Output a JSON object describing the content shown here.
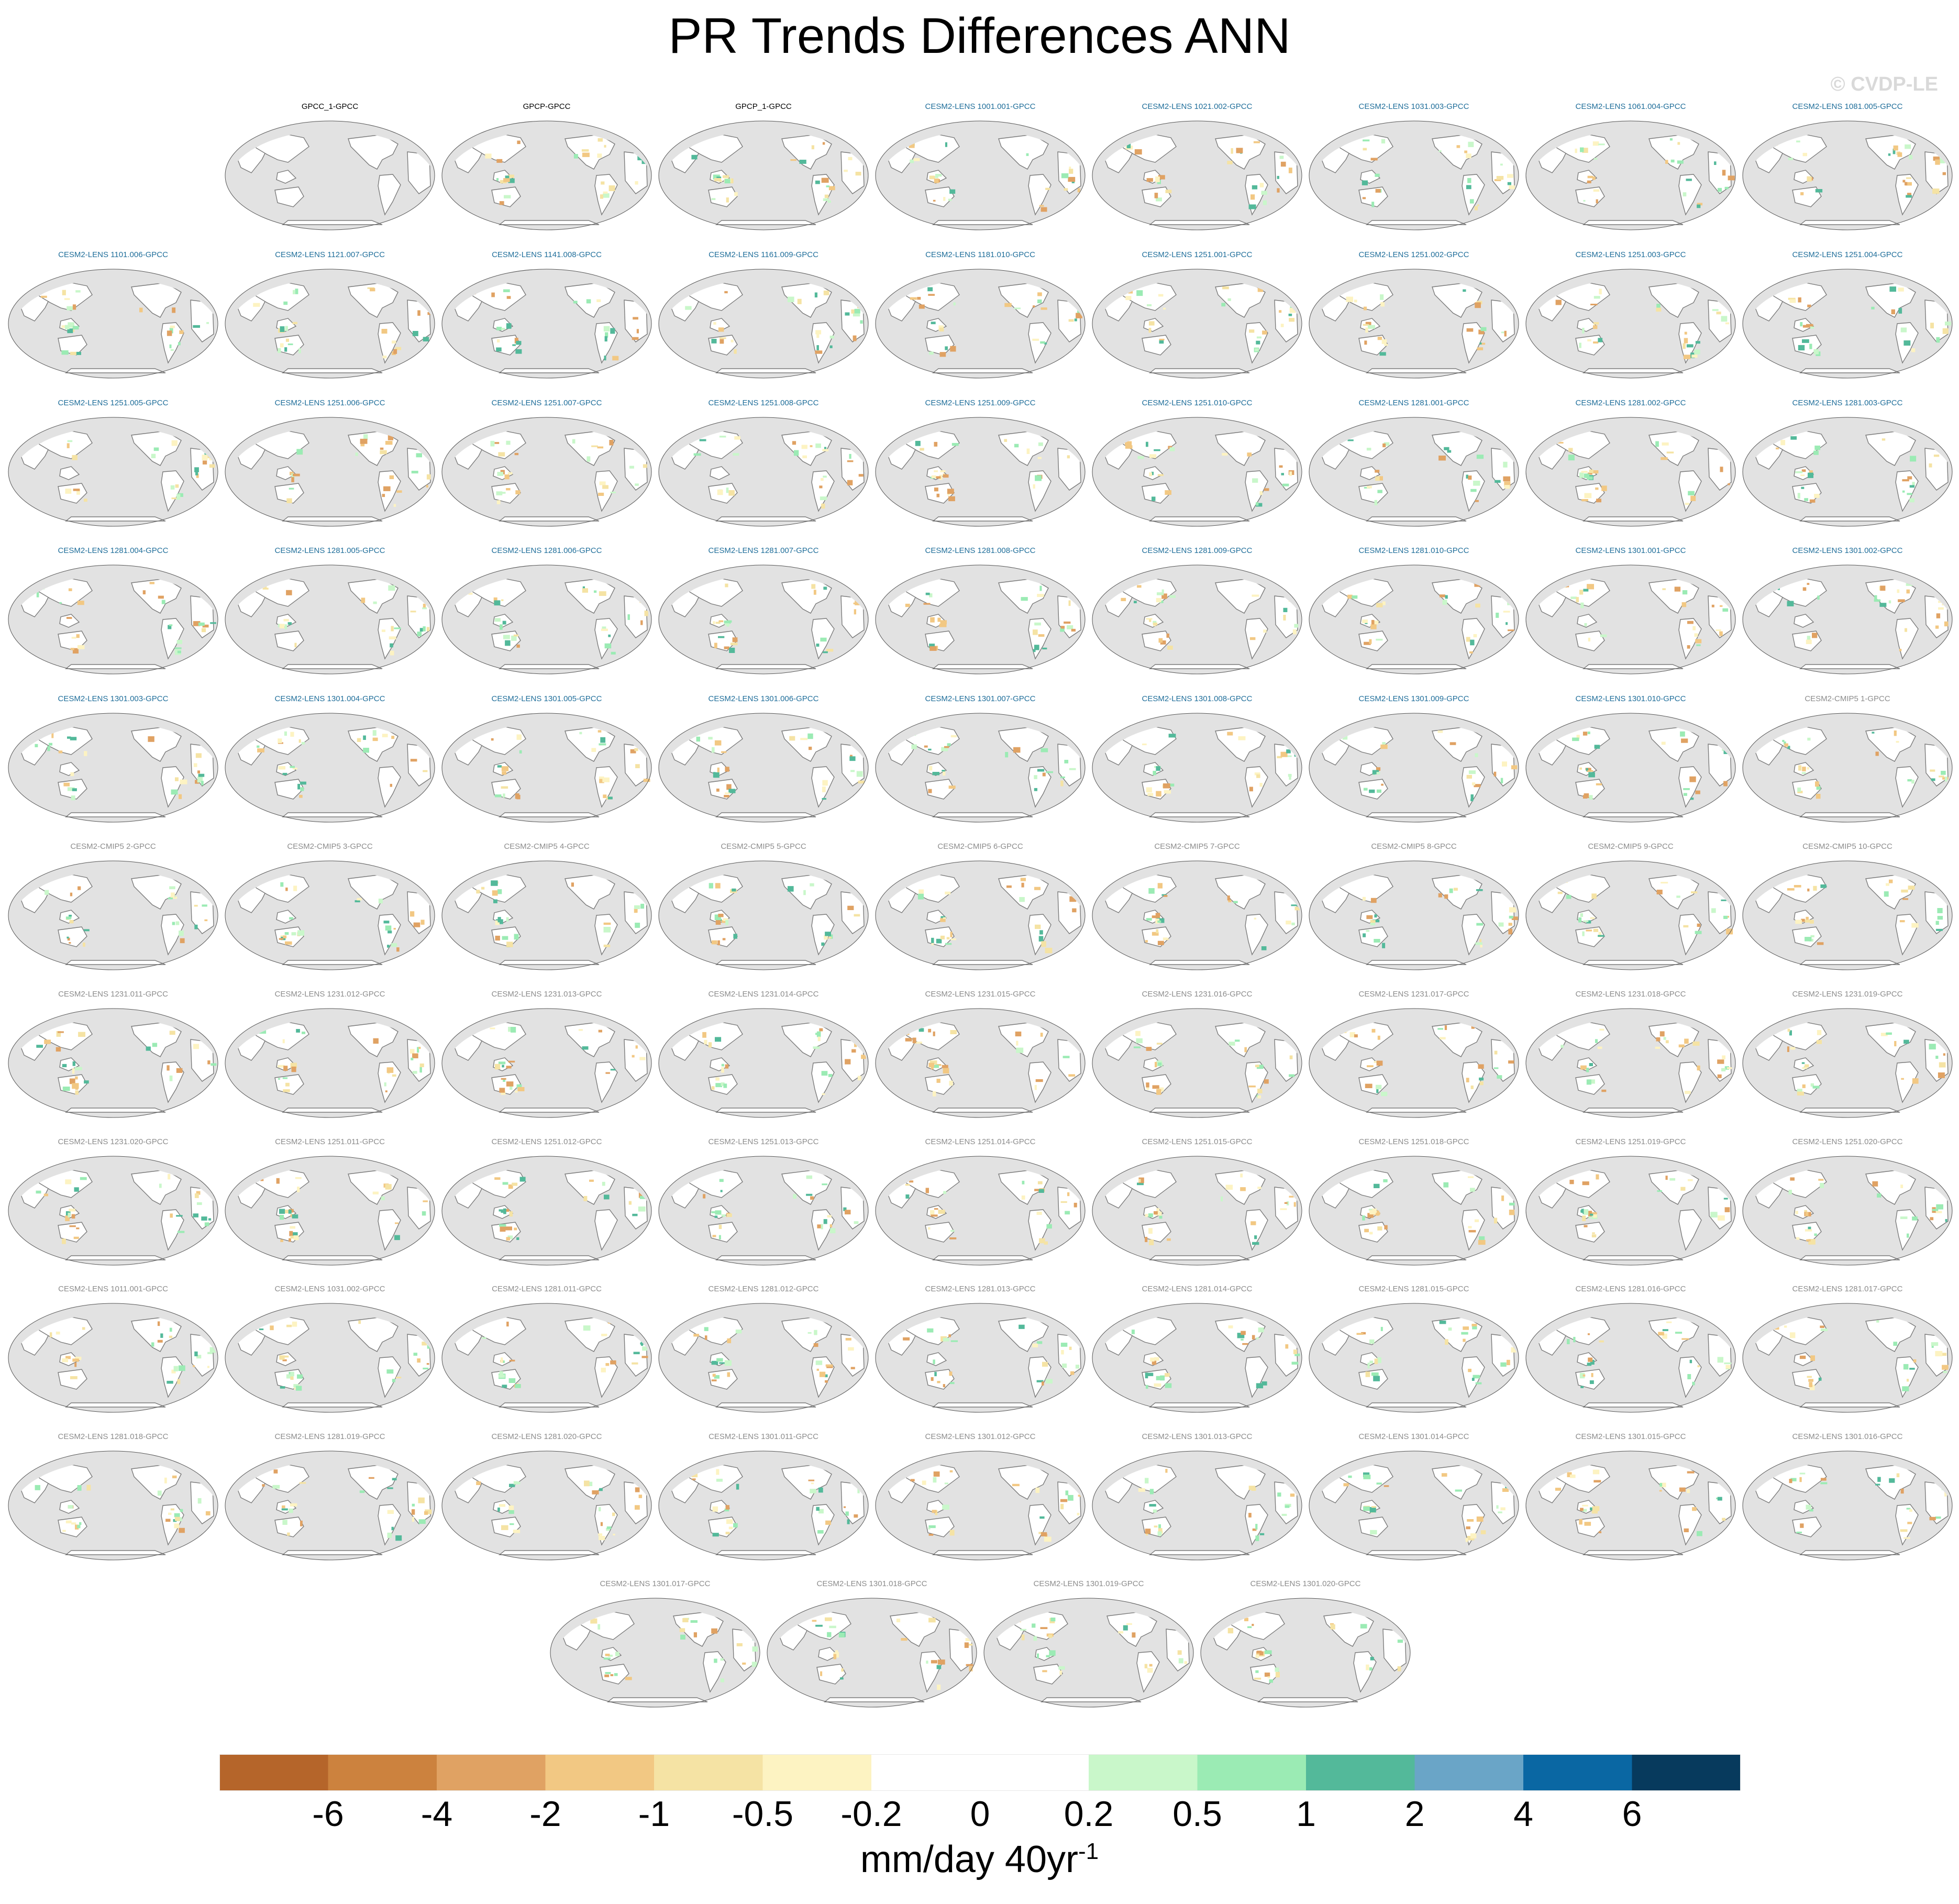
{
  "title": "PR Trends Differences ANN",
  "watermark": "© CVDP-LE",
  "colors": {
    "ocean_fill": "#e2e2e2",
    "land_fill": "#ffffff",
    "coast": "#7a7a7a",
    "label_obs": "#000000",
    "label_blue": "#1f6e9a",
    "label_gray": "#8c8c8c"
  },
  "chart_data": {
    "type": "heatmap",
    "projection": "Robinson, Pacific-centered global maps",
    "variable": "PR",
    "season": "ANN",
    "panels": [
      {
        "label": "GPCC_1-GPCC",
        "group": "obs"
      },
      {
        "label": "GPCP-GPCC",
        "group": "obs"
      },
      {
        "label": "GPCP_1-GPCC",
        "group": "obs"
      },
      {
        "label": "CESM2-LENS 1001.001-GPCC",
        "group": "blue"
      },
      {
        "label": "CESM2-LENS 1021.002-GPCC",
        "group": "blue"
      },
      {
        "label": "CESM2-LENS 1031.003-GPCC",
        "group": "blue"
      },
      {
        "label": "CESM2-LENS 1061.004-GPCC",
        "group": "blue"
      },
      {
        "label": "CESM2-LENS 1081.005-GPCC",
        "group": "blue"
      },
      {
        "label": "CESM2-LENS 1101.006-GPCC",
        "group": "blue"
      },
      {
        "label": "CESM2-LENS 1121.007-GPCC",
        "group": "blue"
      },
      {
        "label": "CESM2-LENS 1141.008-GPCC",
        "group": "blue"
      },
      {
        "label": "CESM2-LENS 1161.009-GPCC",
        "group": "blue"
      },
      {
        "label": "CESM2-LENS 1181.010-GPCC",
        "group": "blue"
      },
      {
        "label": "CESM2-LENS 1251.001-GPCC",
        "group": "blue"
      },
      {
        "label": "CESM2-LENS 1251.002-GPCC",
        "group": "blue"
      },
      {
        "label": "CESM2-LENS 1251.003-GPCC",
        "group": "blue"
      },
      {
        "label": "CESM2-LENS 1251.004-GPCC",
        "group": "blue"
      },
      {
        "label": "CESM2-LENS 1251.005-GPCC",
        "group": "blue"
      },
      {
        "label": "CESM2-LENS 1251.006-GPCC",
        "group": "blue"
      },
      {
        "label": "CESM2-LENS 1251.007-GPCC",
        "group": "blue"
      },
      {
        "label": "CESM2-LENS 1251.008-GPCC",
        "group": "blue"
      },
      {
        "label": "CESM2-LENS 1251.009-GPCC",
        "group": "blue"
      },
      {
        "label": "CESM2-LENS 1251.010-GPCC",
        "group": "blue"
      },
      {
        "label": "CESM2-LENS 1281.001-GPCC",
        "group": "blue"
      },
      {
        "label": "CESM2-LENS 1281.002-GPCC",
        "group": "blue"
      },
      {
        "label": "CESM2-LENS 1281.003-GPCC",
        "group": "blue"
      },
      {
        "label": "CESM2-LENS 1281.004-GPCC",
        "group": "blue"
      },
      {
        "label": "CESM2-LENS 1281.005-GPCC",
        "group": "blue"
      },
      {
        "label": "CESM2-LENS 1281.006-GPCC",
        "group": "blue"
      },
      {
        "label": "CESM2-LENS 1281.007-GPCC",
        "group": "blue"
      },
      {
        "label": "CESM2-LENS 1281.008-GPCC",
        "group": "blue"
      },
      {
        "label": "CESM2-LENS 1281.009-GPCC",
        "group": "blue"
      },
      {
        "label": "CESM2-LENS 1281.010-GPCC",
        "group": "blue"
      },
      {
        "label": "CESM2-LENS 1301.001-GPCC",
        "group": "blue"
      },
      {
        "label": "CESM2-LENS 1301.002-GPCC",
        "group": "blue"
      },
      {
        "label": "CESM2-LENS 1301.003-GPCC",
        "group": "blue"
      },
      {
        "label": "CESM2-LENS 1301.004-GPCC",
        "group": "blue"
      },
      {
        "label": "CESM2-LENS 1301.005-GPCC",
        "group": "blue"
      },
      {
        "label": "CESM2-LENS 1301.006-GPCC",
        "group": "blue"
      },
      {
        "label": "CESM2-LENS 1301.007-GPCC",
        "group": "blue"
      },
      {
        "label": "CESM2-LENS 1301.008-GPCC",
        "group": "blue"
      },
      {
        "label": "CESM2-LENS 1301.009-GPCC",
        "group": "blue"
      },
      {
        "label": "CESM2-LENS 1301.010-GPCC",
        "group": "blue"
      },
      {
        "label": "CESM2-CMIP5 1-GPCC",
        "group": "gray"
      },
      {
        "label": "CESM2-CMIP5 2-GPCC",
        "group": "gray"
      },
      {
        "label": "CESM2-CMIP5 3-GPCC",
        "group": "gray"
      },
      {
        "label": "CESM2-CMIP5 4-GPCC",
        "group": "gray"
      },
      {
        "label": "CESM2-CMIP5 5-GPCC",
        "group": "gray"
      },
      {
        "label": "CESM2-CMIP5 6-GPCC",
        "group": "gray"
      },
      {
        "label": "CESM2-CMIP5 7-GPCC",
        "group": "gray"
      },
      {
        "label": "CESM2-CMIP5 8-GPCC",
        "group": "gray"
      },
      {
        "label": "CESM2-CMIP5 9-GPCC",
        "group": "gray"
      },
      {
        "label": "CESM2-CMIP5 10-GPCC",
        "group": "gray"
      },
      {
        "label": "CESM2-LENS 1231.011-GPCC",
        "group": "gray"
      },
      {
        "label": "CESM2-LENS 1231.012-GPCC",
        "group": "gray"
      },
      {
        "label": "CESM2-LENS 1231.013-GPCC",
        "group": "gray"
      },
      {
        "label": "CESM2-LENS 1231.014-GPCC",
        "group": "gray"
      },
      {
        "label": "CESM2-LENS 1231.015-GPCC",
        "group": "gray"
      },
      {
        "label": "CESM2-LENS 1231.016-GPCC",
        "group": "gray"
      },
      {
        "label": "CESM2-LENS 1231.017-GPCC",
        "group": "gray"
      },
      {
        "label": "CESM2-LENS 1231.018-GPCC",
        "group": "gray"
      },
      {
        "label": "CESM2-LENS 1231.019-GPCC",
        "group": "gray"
      },
      {
        "label": "CESM2-LENS 1231.020-GPCC",
        "group": "gray"
      },
      {
        "label": "CESM2-LENS 1251.011-GPCC",
        "group": "gray"
      },
      {
        "label": "CESM2-LENS 1251.012-GPCC",
        "group": "gray"
      },
      {
        "label": "CESM2-LENS 1251.013-GPCC",
        "group": "gray"
      },
      {
        "label": "CESM2-LENS 1251.014-GPCC",
        "group": "gray"
      },
      {
        "label": "CESM2-LENS 1251.015-GPCC",
        "group": "gray"
      },
      {
        "label": "CESM2-LENS 1251.018-GPCC",
        "group": "gray"
      },
      {
        "label": "CESM2-LENS 1251.019-GPCC",
        "group": "gray"
      },
      {
        "label": "CESM2-LENS 1251.020-GPCC",
        "group": "gray"
      },
      {
        "label": "CESM2-LENS 1011.001-GPCC",
        "group": "gray"
      },
      {
        "label": "CESM2-LENS 1031.002-GPCC",
        "group": "gray"
      },
      {
        "label": "CESM2-LENS 1281.011-GPCC",
        "group": "gray"
      },
      {
        "label": "CESM2-LENS 1281.012-GPCC",
        "group": "gray"
      },
      {
        "label": "CESM2-LENS 1281.013-GPCC",
        "group": "gray"
      },
      {
        "label": "CESM2-LENS 1281.014-GPCC",
        "group": "gray"
      },
      {
        "label": "CESM2-LENS 1281.015-GPCC",
        "group": "gray"
      },
      {
        "label": "CESM2-LENS 1281.016-GPCC",
        "group": "gray"
      },
      {
        "label": "CESM2-LENS 1281.017-GPCC",
        "group": "gray"
      },
      {
        "label": "CESM2-LENS 1281.018-GPCC",
        "group": "gray"
      },
      {
        "label": "CESM2-LENS 1281.019-GPCC",
        "group": "gray"
      },
      {
        "label": "CESM2-LENS 1281.020-GPCC",
        "group": "gray"
      },
      {
        "label": "CESM2-LENS 1301.011-GPCC",
        "group": "gray"
      },
      {
        "label": "CESM2-LENS 1301.012-GPCC",
        "group": "gray"
      },
      {
        "label": "CESM2-LENS 1301.013-GPCC",
        "group": "gray"
      },
      {
        "label": "CESM2-LENS 1301.014-GPCC",
        "group": "gray"
      },
      {
        "label": "CESM2-LENS 1301.015-GPCC",
        "group": "gray"
      },
      {
        "label": "CESM2-LENS 1301.016-GPCC",
        "group": "gray"
      },
      {
        "label": "CESM2-LENS 1301.017-GPCC",
        "group": "gray"
      },
      {
        "label": "CESM2-LENS 1301.018-GPCC",
        "group": "gray"
      },
      {
        "label": "CESM2-LENS 1301.019-GPCC",
        "group": "gray"
      },
      {
        "label": "CESM2-LENS 1301.020-GPCC",
        "group": "gray"
      }
    ],
    "colorbar": {
      "levels": [
        "-6",
        "-4",
        "-2",
        "-1",
        "-0.5",
        "-0.2",
        "0",
        "0.2",
        "0.5",
        "1",
        "2",
        "4",
        "6"
      ],
      "colors": [
        "#b5652a",
        "#cc823e",
        "#e0a263",
        "#f2c883",
        "#f5e3a4",
        "#fdf3c2",
        "#ffffff",
        "#ffffff",
        "#c9f7ca",
        "#9bebb4",
        "#53b99a",
        "#6aa5c7",
        "#0a67a3",
        "#073a5d"
      ],
      "units_base": "mm/day 40yr",
      "units_exponent": "-1"
    }
  }
}
